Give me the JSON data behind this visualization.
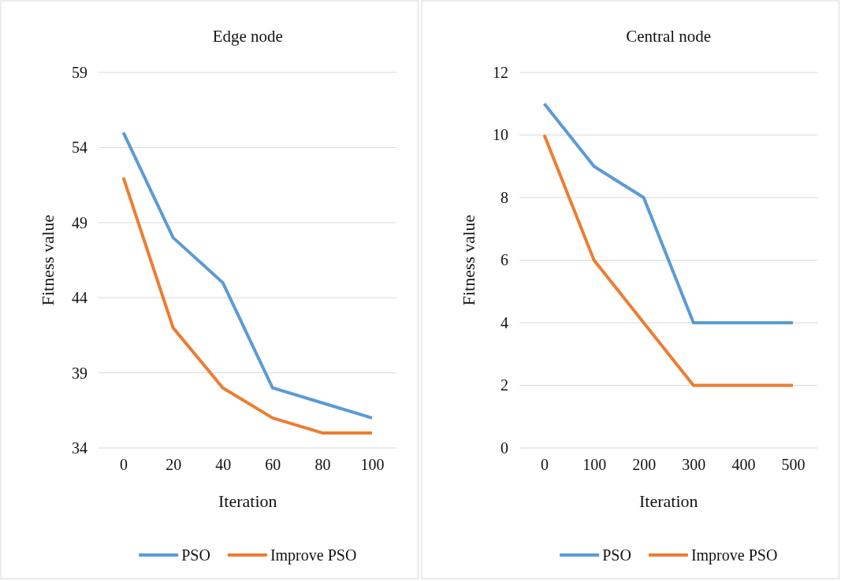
{
  "chart_data": [
    {
      "type": "line",
      "title": "Edge node",
      "xlabel": "Iteration",
      "ylabel": "Fitness value",
      "categories": [
        "0",
        "20",
        "40",
        "60",
        "80",
        "100"
      ],
      "ylim": [
        34,
        59
      ],
      "yticks": [
        34,
        39,
        44,
        49,
        54,
        59
      ],
      "grid": "y",
      "legend": "bottom",
      "marker": "none",
      "line_style": "solid",
      "series": [
        {
          "name": "PSO",
          "color": "#5b9bd5",
          "values": [
            55,
            48,
            45,
            38,
            37,
            36
          ]
        },
        {
          "name": "Improve PSO",
          "color": "#ed7d31",
          "values": [
            52,
            42,
            38,
            36,
            35,
            35
          ]
        }
      ]
    },
    {
      "type": "line",
      "title": "Central node",
      "xlabel": "Iteration",
      "ylabel": "Fitness value",
      "categories": [
        "0",
        "100",
        "200",
        "300",
        "400",
        "500"
      ],
      "ylim": [
        0,
        12
      ],
      "yticks": [
        0,
        2,
        4,
        6,
        8,
        10,
        12
      ],
      "grid": "y",
      "legend": "bottom",
      "marker": "none",
      "line_style": "solid",
      "series": [
        {
          "name": "PSO",
          "color": "#5b9bd5",
          "values": [
            11,
            9,
            8,
            4,
            4,
            4
          ]
        },
        {
          "name": "Improve PSO",
          "color": "#ed7d31",
          "values": [
            10,
            6,
            4,
            2,
            2,
            2
          ]
        }
      ]
    }
  ]
}
